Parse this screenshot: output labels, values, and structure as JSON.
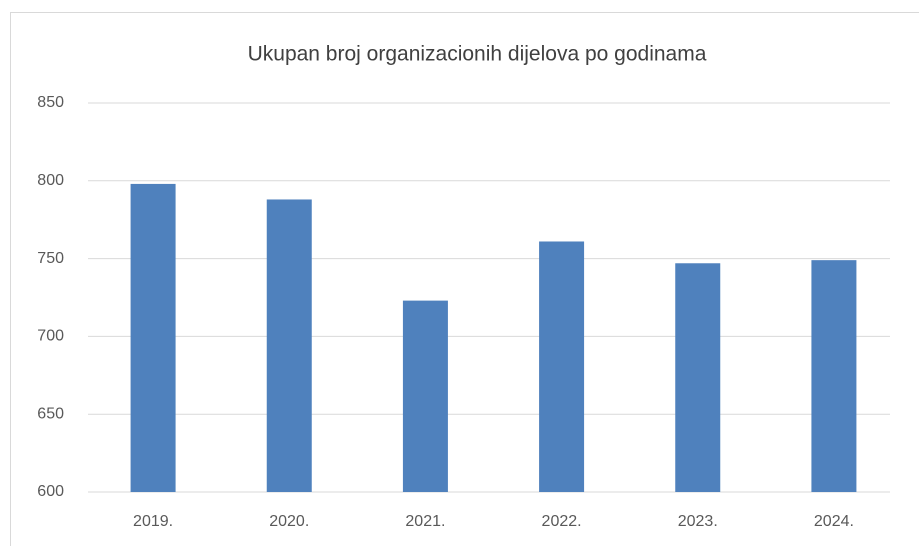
{
  "chart_data": {
    "type": "bar",
    "title": "Ukupan broj organizacionih dijelova po godinama",
    "categories": [
      "2019.",
      "2020.",
      "2021.",
      "2022.",
      "2023.",
      "2024."
    ],
    "values": [
      798,
      788,
      723,
      761,
      747,
      749
    ],
    "color": "#4f81bd",
    "ylim": [
      600,
      850
    ],
    "yticks": [
      600,
      650,
      700,
      750,
      800,
      850
    ],
    "grid": true
  }
}
